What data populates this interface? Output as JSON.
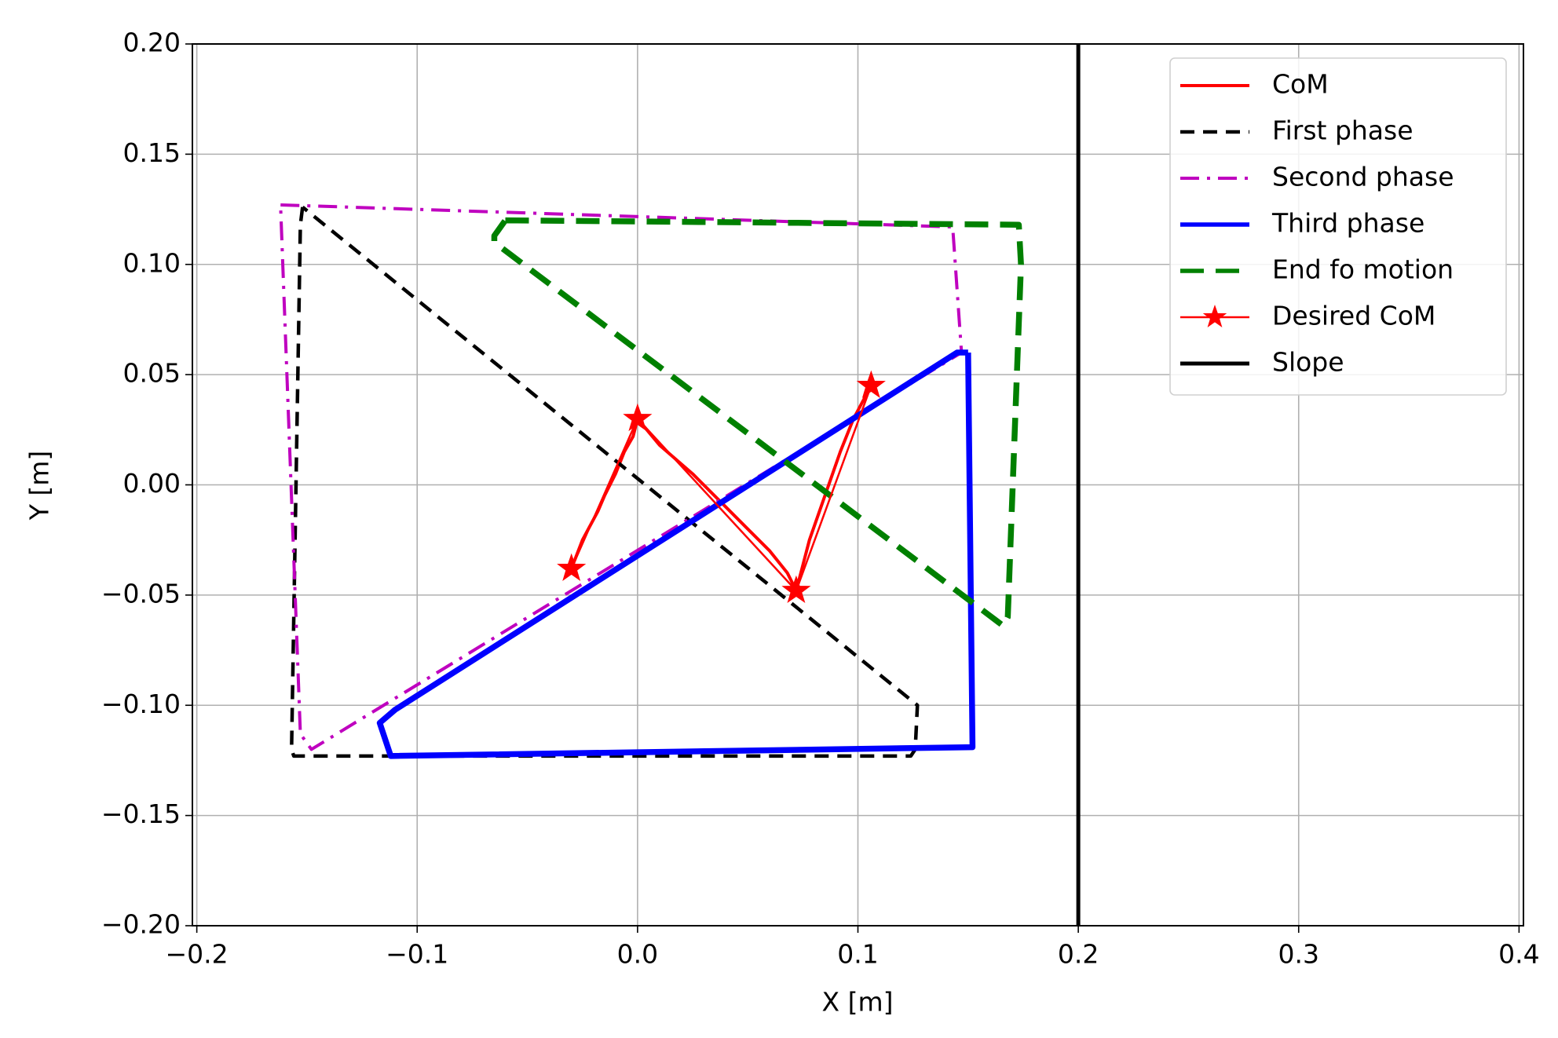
{
  "chart_data": {
    "type": "line",
    "xlabel": "X [m]",
    "ylabel": "Y [m]",
    "xlim": [
      -0.202,
      0.402
    ],
    "ylim": [
      -0.2,
      0.2
    ],
    "xticks": [
      {
        "value": -0.2,
        "label": "−0.2"
      },
      {
        "value": -0.1,
        "label": "−0.1"
      },
      {
        "value": 0.0,
        "label": "0.0"
      },
      0.1,
      0.2,
      0.3,
      0.4
    ],
    "yticks": [
      {
        "value": -0.2,
        "label": "−0.20"
      },
      {
        "value": -0.15,
        "label": "−0.15"
      },
      {
        "value": -0.1,
        "label": "−0.10"
      },
      {
        "value": -0.05,
        "label": "−0.05"
      },
      {
        "value": 0.0,
        "label": "0.00"
      },
      0.05,
      {
        "value": 0.1,
        "label": "0.10"
      },
      0.15,
      {
        "value": 0.2,
        "label": "0.20"
      }
    ],
    "grid": true,
    "legend": "upper right",
    "series": [
      {
        "name": "CoM",
        "color": "#ff0000",
        "linestyle": "solid",
        "x": [
          -0.03,
          -0.025,
          -0.018,
          -0.015,
          -0.01,
          -0.006,
          -0.002,
          0.0,
          0.01,
          0.025,
          0.04,
          0.05,
          0.06,
          0.068,
          0.072,
          0.078,
          0.085,
          0.092,
          0.098,
          0.106
        ],
        "y": [
          -0.038,
          -0.025,
          -0.012,
          -0.005,
          0.005,
          0.015,
          0.022,
          0.03,
          0.018,
          0.005,
          -0.01,
          -0.02,
          -0.03,
          -0.04,
          -0.048,
          -0.025,
          -0.005,
          0.015,
          0.03,
          0.045
        ]
      },
      {
        "name": "First phase",
        "color": "#000000",
        "linestyle": "dashed",
        "x": [
          -0.152,
          -0.153,
          -0.157,
          -0.156,
          0.124,
          0.126,
          0.127,
          -0.152
        ],
        "y": [
          0.126,
          0.118,
          -0.12,
          -0.123,
          -0.123,
          -0.12,
          -0.1,
          0.126
        ]
      },
      {
        "name": "Second phase",
        "color": "#bf00bf",
        "linestyle": "dashdot",
        "x": [
          -0.162,
          0.143,
          0.147,
          -0.148,
          -0.153,
          -0.162
        ],
        "y": [
          0.127,
          0.117,
          0.06,
          -0.12,
          -0.113,
          0.127
        ]
      },
      {
        "name": "Third phase",
        "color": "#0000ff",
        "linestyle": "solid",
        "x": [
          0.15,
          0.152,
          -0.112,
          -0.117,
          -0.11,
          0.145,
          0.15
        ],
        "y": [
          0.06,
          -0.119,
          -0.123,
          -0.108,
          -0.102,
          0.06,
          0.06
        ]
      },
      {
        "name": "End fo motion",
        "color": "#008000",
        "linestyle": "dashed",
        "x": [
          -0.06,
          0.173,
          0.174,
          0.168,
          0.166,
          -0.065,
          -0.065,
          -0.06
        ],
        "y": [
          0.12,
          0.118,
          0.1,
          -0.06,
          -0.064,
          0.11,
          0.113,
          0.12
        ]
      },
      {
        "name": "Desired CoM",
        "color": "#ff0000",
        "linestyle": "solid",
        "marker": "*",
        "x": [
          -0.03,
          0.0,
          0.072,
          0.106
        ],
        "y": [
          -0.038,
          0.03,
          -0.048,
          0.045
        ]
      },
      {
        "name": "Slope",
        "color": "#000000",
        "linestyle": "solid",
        "x": [
          0.2,
          0.2
        ],
        "y": [
          -0.2,
          0.2
        ]
      }
    ]
  }
}
